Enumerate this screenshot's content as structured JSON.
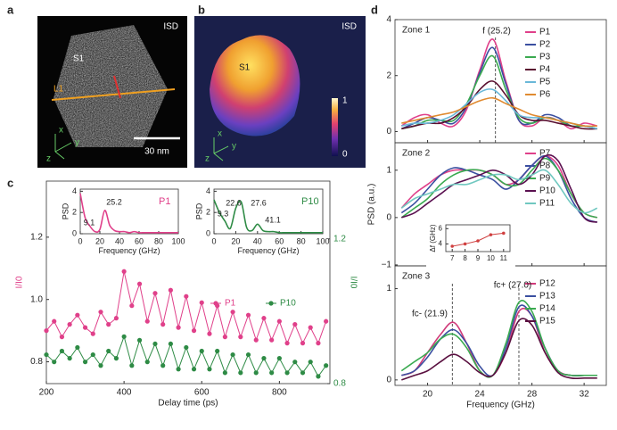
{
  "panels": {
    "a": {
      "label": "a",
      "tag": "ISD",
      "region": "S1",
      "line": "L1",
      "scale_bar": "30 nm",
      "axes": [
        "x",
        "z",
        "y"
      ]
    },
    "b": {
      "label": "b",
      "tag": "ISD",
      "region": "S1",
      "colorbar_ticks": [
        "1",
        "0"
      ],
      "axes": [
        "x",
        "z",
        "y"
      ]
    }
  },
  "chart_data": [
    {
      "type": "line",
      "panel_label": "c",
      "xlabel": "Delay time (ps)",
      "ylabel": "I/I0",
      "y2label": "I/I0",
      "x": [
        200,
        220,
        240,
        260,
        280,
        300,
        320,
        340,
        360,
        380,
        400,
        420,
        440,
        460,
        480,
        500,
        520,
        540,
        560,
        580,
        600,
        620,
        640,
        660,
        680,
        700,
        720,
        740,
        760,
        780,
        800,
        820,
        840,
        860,
        880,
        900,
        920
      ],
      "xlim": [
        200,
        930
      ],
      "xticks": [
        200,
        400,
        600,
        800
      ],
      "ylim": [
        0.73,
        1.38
      ],
      "yticks": [
        0.8,
        {
          "value": 1.0,
          "label": "1.0"
        },
        1.2
      ],
      "y2lim": [
        0.8,
        1.36
      ],
      "y2ticks": [
        0.8,
        1.2
      ],
      "series": [
        {
          "name": "P1",
          "color": "#e0408a",
          "values": [
            0.9,
            0.93,
            0.88,
            0.92,
            0.95,
            0.91,
            0.89,
            0.96,
            0.92,
            0.94,
            1.09,
            0.98,
            1.05,
            0.93,
            1.02,
            0.92,
            1.03,
            0.91,
            1.01,
            0.9,
            0.99,
            0.89,
            0.98,
            0.88,
            0.96,
            0.88,
            0.95,
            0.87,
            0.94,
            0.87,
            0.93,
            0.86,
            0.92,
            0.86,
            0.91,
            0.86,
            0.93
          ]
        },
        {
          "name": "P10",
          "color": "#2e8b45",
          "axis": "y2",
          "values": [
            0.88,
            0.86,
            0.89,
            0.87,
            0.9,
            0.86,
            0.88,
            0.85,
            0.89,
            0.87,
            0.93,
            0.85,
            0.92,
            0.86,
            0.91,
            0.85,
            0.91,
            0.84,
            0.9,
            0.84,
            0.89,
            0.84,
            0.89,
            0.83,
            0.88,
            0.83,
            0.88,
            0.83,
            0.87,
            0.83,
            0.87,
            0.83,
            0.86,
            0.83,
            0.86,
            0.82,
            0.85
          ]
        }
      ]
    },
    {
      "type": "line",
      "xlabel": "Frequency (GHz)",
      "ylabel": "PSD",
      "x": [
        0,
        5,
        10,
        15,
        20,
        25,
        30,
        35,
        40,
        45,
        50,
        55,
        60,
        65,
        70,
        75,
        80,
        85,
        90,
        95,
        100
      ],
      "xlim": [
        0,
        100
      ],
      "xticks": [
        0,
        20,
        40,
        60,
        80,
        100
      ],
      "ylim": [
        0,
        4.2
      ],
      "yticks": [
        0,
        2,
        4
      ],
      "annotations": [
        "9.1",
        "25.2"
      ],
      "series": [
        {
          "name": "P1",
          "color": "#e0408a",
          "values": [
            3.8,
            1.5,
            0.7,
            0.2,
            0.4,
            2.2,
            0.8,
            0.3,
            0.2,
            0.2,
            0.1,
            0.2,
            0.1,
            0.1,
            0.1,
            0.1,
            0.1,
            0.1,
            0.1,
            0.1,
            0.1
          ]
        }
      ]
    },
    {
      "type": "line",
      "xlabel": "Frequency (GHz)",
      "ylabel": "PSD",
      "x": [
        0,
        5,
        10,
        15,
        20,
        25,
        30,
        35,
        40,
        45,
        50,
        55,
        60,
        65,
        70,
        75,
        80,
        85,
        90,
        95,
        100
      ],
      "xlim": [
        0,
        100
      ],
      "xticks": [
        0,
        20,
        40,
        60,
        80,
        100
      ],
      "ylim": [
        0,
        4.2
      ],
      "yticks": [
        0,
        2,
        4
      ],
      "annotations": [
        "9.3",
        "22.6",
        "27.6",
        "41.1"
      ],
      "series": [
        {
          "name": "P10",
          "color": "#2e8b45",
          "values": [
            3.2,
            2.0,
            1.2,
            0.5,
            2.4,
            3.0,
            0.6,
            0.3,
            0.9,
            0.3,
            0.2,
            0.2,
            0.1,
            0.1,
            0.1,
            0.1,
            0.1,
            0.1,
            0.1,
            0.1,
            0.1
          ]
        }
      ]
    },
    {
      "type": "line",
      "panel_label": "d",
      "title": "Zone 1",
      "x": [
        18,
        19,
        20,
        21,
        22,
        23,
        24,
        25,
        26,
        27,
        28,
        29,
        30,
        31,
        32,
        33
      ],
      "xlim": [
        17.5,
        33.7
      ],
      "xticks": [
        20,
        24,
        28,
        32
      ],
      "ylim": [
        -0.4,
        4.0
      ],
      "yticks": [
        0,
        2,
        4
      ],
      "vlines": [
        25.2
      ],
      "annotations": [
        "f (25.2)"
      ],
      "series": [
        {
          "name": "P1",
          "color": "#e0408a",
          "values": [
            0.2,
            0.5,
            0.6,
            0.3,
            0.2,
            0.8,
            2.2,
            3.3,
            1.8,
            0.4,
            0.2,
            0.5,
            0.4,
            0.1,
            0.3,
            0.2
          ]
        },
        {
          "name": "P2",
          "color": "#3a4fa0",
          "values": [
            0.1,
            0.3,
            0.5,
            0.4,
            0.3,
            0.9,
            2.1,
            3.0,
            1.7,
            0.4,
            0.3,
            0.6,
            0.5,
            0.2,
            0.2,
            0.1
          ]
        },
        {
          "name": "P3",
          "color": "#3aaa50",
          "values": [
            0.1,
            0.2,
            0.4,
            0.4,
            0.4,
            1.0,
            2.0,
            2.7,
            1.5,
            0.5,
            0.3,
            0.5,
            0.4,
            0.2,
            0.2,
            0.1
          ]
        },
        {
          "name": "P4",
          "color": "#5a1030",
          "values": [
            0.1,
            0.2,
            0.3,
            0.3,
            0.5,
            0.9,
            1.5,
            1.8,
            1.3,
            0.6,
            0.4,
            0.4,
            0.3,
            0.2,
            0.1,
            0.1
          ]
        },
        {
          "name": "P5",
          "color": "#6ab8d8",
          "values": [
            0.2,
            0.3,
            0.3,
            0.4,
            0.6,
            1.0,
            1.4,
            1.5,
            1.1,
            0.6,
            0.5,
            0.5,
            0.4,
            0.3,
            0.2,
            0.1
          ]
        },
        {
          "name": "P6",
          "color": "#e08a30",
          "values": [
            0.3,
            0.4,
            0.5,
            0.6,
            0.7,
            0.9,
            1.1,
            1.2,
            1.0,
            0.8,
            0.6,
            0.5,
            0.4,
            0.3,
            0.2,
            0.2
          ]
        }
      ]
    },
    {
      "type": "line",
      "title": "Zone 2",
      "ylabel": "PSD (a.u.)",
      "x": [
        18,
        19,
        20,
        21,
        22,
        23,
        24,
        25,
        26,
        27,
        28,
        29,
        30,
        31,
        32,
        33
      ],
      "xlim": [
        17.5,
        33.7
      ],
      "xticks": [
        20,
        24,
        28,
        32
      ],
      "ylim": [
        -1.02,
        1.58
      ],
      "yticks": [
        {
          "value": -1,
          "label": "−1"
        },
        0,
        1
      ],
      "series": [
        {
          "name": "P7",
          "color": "#e0408a",
          "values": [
            0.2,
            0.5,
            0.7,
            0.9,
            1.0,
            1.0,
            1.0,
            0.9,
            0.7,
            0.8,
            1.1,
            1.3,
            1.1,
            0.5,
            0.1,
            0.0
          ]
        },
        {
          "name": "P8",
          "color": "#3a4fa0",
          "values": [
            0.1,
            0.3,
            0.6,
            0.9,
            1.05,
            1.0,
            0.9,
            0.8,
            0.6,
            0.8,
            1.1,
            1.3,
            1.0,
            0.4,
            0.0,
            -0.1
          ]
        },
        {
          "name": "P9",
          "color": "#3aaa50",
          "values": [
            0.0,
            0.2,
            0.4,
            0.7,
            0.9,
            1.0,
            1.0,
            0.9,
            0.7,
            0.7,
            1.0,
            1.25,
            1.0,
            0.5,
            0.1,
            0.0
          ]
        },
        {
          "name": "P10",
          "color": "#5a1050",
          "values": [
            0.0,
            0.1,
            0.3,
            0.5,
            0.7,
            0.8,
            0.9,
            1.0,
            0.9,
            0.7,
            0.9,
            1.3,
            1.2,
            0.6,
            0.0,
            -0.1
          ]
        },
        {
          "name": "P11",
          "color": "#70c8c0",
          "values": [
            0.2,
            0.4,
            0.5,
            0.6,
            0.7,
            0.7,
            0.8,
            0.9,
            0.9,
            0.8,
            0.9,
            1.0,
            0.7,
            0.3,
            0.1,
            0.2
          ]
        }
      ]
    },
    {
      "type": "line",
      "title": "Zone 3",
      "xlabel": "Frequency (GHz)",
      "x": [
        18,
        19,
        20,
        21,
        22,
        23,
        24,
        25,
        26,
        27,
        28,
        29,
        30,
        31,
        32,
        33
      ],
      "xlim": [
        17.5,
        33.7
      ],
      "xticks": [
        20,
        24,
        28,
        32
      ],
      "ylim": [
        -0.06,
        1.25
      ],
      "yticks": [
        0,
        1
      ],
      "vlines": [
        21.9,
        27.0
      ],
      "annotations": [
        "fc- (21.9)",
        "fc+ (27.0)"
      ],
      "series": [
        {
          "name": "P12",
          "color": "#d03a7a",
          "values": [
            0.05,
            0.1,
            0.3,
            0.5,
            0.63,
            0.4,
            0.1,
            0.05,
            0.3,
            0.75,
            0.7,
            0.3,
            0.1,
            0.05,
            0.05,
            0.05
          ]
        },
        {
          "name": "P13",
          "color": "#3a4fa0",
          "values": [
            0.05,
            0.1,
            0.25,
            0.45,
            0.55,
            0.4,
            0.15,
            0.05,
            0.35,
            0.8,
            0.7,
            0.35,
            0.1,
            0.05,
            0.05,
            0.05
          ]
        },
        {
          "name": "P14",
          "color": "#3aaa50",
          "values": [
            0.1,
            0.2,
            0.3,
            0.45,
            0.5,
            0.35,
            0.1,
            0.05,
            0.4,
            0.85,
            0.75,
            0.35,
            0.1,
            0.05,
            0.05,
            0.05
          ]
        },
        {
          "name": "P15",
          "color": "#5a1040",
          "values": [
            0.0,
            0.05,
            0.1,
            0.2,
            0.28,
            0.2,
            0.08,
            0.05,
            0.3,
            0.65,
            0.6,
            0.3,
            0.08,
            0.02,
            0.02,
            0.02
          ]
        }
      ]
    },
    {
      "type": "line",
      "ylabel": "Δf (GHz)",
      "x": [
        7,
        8,
        9,
        10,
        11
      ],
      "xlim": [
        6.5,
        11.5
      ],
      "xticks": [
        7,
        8,
        9,
        10,
        11
      ],
      "ylim": [
        3,
        6.5
      ],
      "yticks": [
        4,
        6
      ],
      "series": [
        {
          "color": "#d04040",
          "values": [
            3.7,
            4.0,
            4.4,
            5.2,
            5.4
          ]
        }
      ]
    }
  ]
}
